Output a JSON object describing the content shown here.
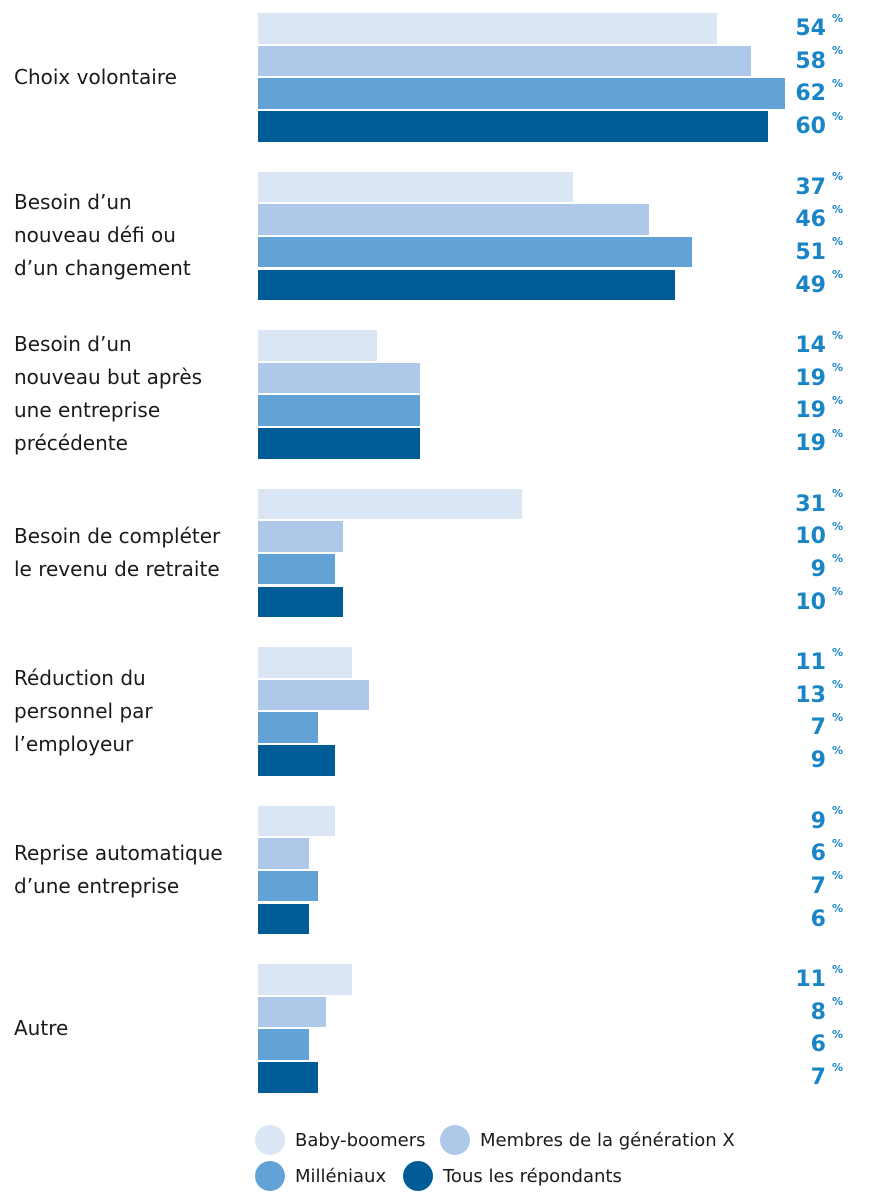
{
  "chart_data": {
    "type": "bar",
    "orientation": "horizontal",
    "categories": [
      [
        "Choix volontaire"
      ],
      [
        "Besoin d’un",
        "nouveau défi ou",
        "d’un changement"
      ],
      [
        "Besoin d’un",
        "nouveau but après",
        "une entreprise",
        "précédente"
      ],
      [
        "Besoin de compléter",
        "le revenu de retraite"
      ],
      [
        "Réduction du",
        "personnel par",
        "l’employeur"
      ],
      [
        "Reprise automatique",
        "d’une entreprise"
      ],
      [
        "Autre"
      ]
    ],
    "series": [
      {
        "name": "Baby-boomers",
        "color": "#dbe6f4",
        "values": [
          54,
          37,
          14,
          31,
          11,
          9,
          11
        ]
      },
      {
        "name": "Membres de la génération X",
        "color": "#adc8e8",
        "values": [
          58,
          46,
          19,
          10,
          13,
          6,
          8
        ]
      },
      {
        "name": "Milléniaux",
        "color": "#62a2d7",
        "values": [
          62,
          51,
          19,
          9,
          7,
          7,
          6
        ]
      },
      {
        "name": "Tous les répondants",
        "color": "#005c97",
        "values": [
          60,
          49,
          19,
          10,
          9,
          6,
          7
        ]
      }
    ],
    "value_unit": "%",
    "xlim": [
      0,
      62
    ],
    "grid": false,
    "legend_position": "bottom"
  }
}
